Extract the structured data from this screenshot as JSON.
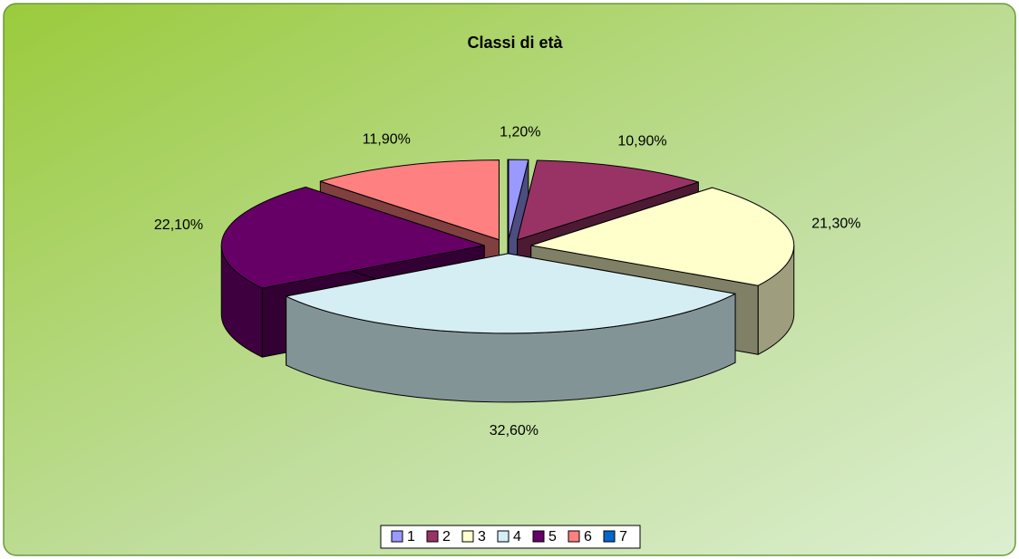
{
  "chart_data": {
    "type": "pie3d",
    "title": "Classi di età",
    "categories": [
      "1",
      "2",
      "3",
      "4",
      "5",
      "6",
      "7"
    ],
    "values": [
      1.2,
      10.9,
      21.3,
      32.6,
      22.1,
      11.9,
      0
    ],
    "value_labels": [
      "1,20%",
      "10,90%",
      "21,30%",
      "32,60%",
      "22,10%",
      "11,90%",
      null
    ],
    "colors": [
      "#9999ff",
      "#993366",
      "#ffffcc",
      "#d4eef4",
      "#660066",
      "#ff8080",
      "#0066cc"
    ],
    "legend": "bottom"
  }
}
